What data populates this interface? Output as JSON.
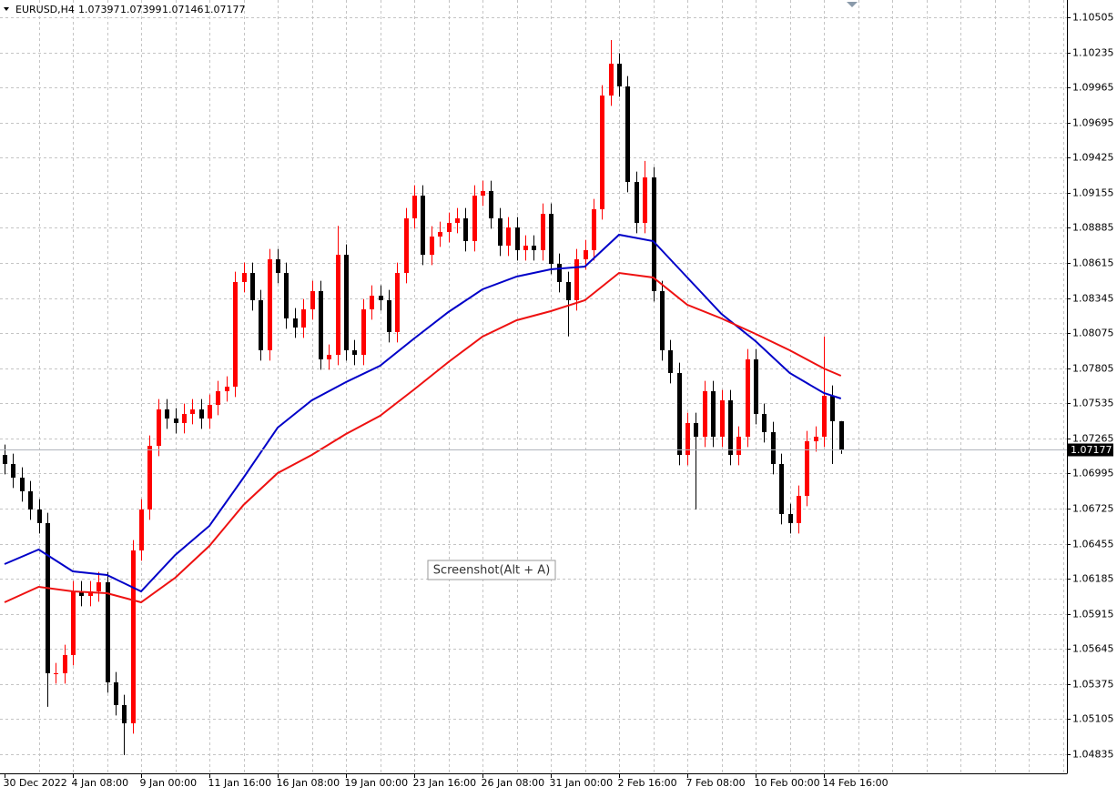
{
  "chart_data": {
    "type": "candlestick",
    "title": "EURUSD,H4",
    "annotation": "Screenshot(Alt + A)",
    "categories": [
      "30 Dec 2022",
      null,
      null,
      null,
      null,
      null,
      null,
      null,
      "4 Jan 08:00",
      null,
      null,
      null,
      null,
      null,
      null,
      null,
      "9 Jan 00:00",
      null,
      null,
      null,
      null,
      null,
      null,
      null,
      "11 Jan 16:00",
      null,
      null,
      null,
      null,
      null,
      null,
      null,
      "16 Jan 08:00",
      null,
      null,
      null,
      null,
      null,
      null,
      null,
      "19 Jan 00:00",
      null,
      null,
      null,
      null,
      null,
      null,
      null,
      "23 Jan 16:00",
      null,
      null,
      null,
      null,
      null,
      null,
      null,
      "26 Jan 08:00",
      null,
      null,
      null,
      null,
      null,
      null,
      null,
      "31 Jan 00:00",
      null,
      null,
      null,
      null,
      null,
      null,
      null,
      "2 Feb 16:00",
      null,
      null,
      null,
      null,
      null,
      null,
      null,
      "7 Feb 08:00",
      null,
      null,
      null,
      null,
      null,
      null,
      null,
      "10 Feb 00:00",
      null,
      null,
      null,
      null,
      null,
      null,
      null,
      "14 Feb 16:00",
      null,
      null
    ],
    "open": [
      1.07138,
      1.07068,
      1.06963,
      1.06858,
      1.06718,
      1.06613,
      1.05458,
      1.05458,
      1.05598,
      1.06088,
      1.06053,
      1.06088,
      1.06158,
      1.05388,
      1.05213,
      1.05073,
      1.06403,
      1.06718,
      1.07208,
      1.07488,
      1.07418,
      1.07383,
      1.07453,
      1.07488,
      1.07418,
      1.07523,
      1.07628,
      1.07663,
      1.08468,
      1.08538,
      1.08328,
      1.07943,
      1.08643,
      1.08538,
      1.08188,
      1.08118,
      1.08258,
      1.08398,
      1.07873,
      1.07908,
      1.08678,
      1.07943,
      1.07908,
      1.08258,
      1.08363,
      1.08328,
      1.08083,
      1.08538,
      1.08958,
      1.09133,
      1.08678,
      1.08818,
      1.08853,
      1.08923,
      1.08958,
      1.08783,
      1.09133,
      1.09168,
      1.08958,
      1.08748,
      1.08888,
      1.08713,
      1.08748,
      1.08713,
      1.08993,
      1.08608,
      1.08468,
      1.08328,
      1.08643,
      1.08713,
      1.09028,
      1.09903,
      1.10148,
      1.09973,
      1.09238,
      1.08923,
      1.09273,
      1.08398,
      1.07943,
      1.07768,
      1.07138,
      1.07383,
      1.07278,
      1.07628,
      1.07278,
      1.07558,
      1.07138,
      1.07278,
      1.07873,
      1.07453,
      1.07313,
      1.07068,
      1.06683,
      1.06613,
      1.06823,
      1.07243,
      1.07278,
      1.07593,
      1.07397
    ],
    "high": [
      1.07218,
      1.07148,
      1.07043,
      1.06938,
      1.06798,
      1.06693,
      1.05538,
      1.05678,
      1.06168,
      1.06168,
      1.06168,
      1.06238,
      1.06238,
      1.05468,
      1.05293,
      1.06483,
      1.06798,
      1.07288,
      1.07568,
      1.07568,
      1.07498,
      1.07533,
      1.07568,
      1.07568,
      1.07603,
      1.07708,
      1.07743,
      1.08548,
      1.08618,
      1.08618,
      1.08408,
      1.08723,
      1.08723,
      1.08618,
      1.08268,
      1.08338,
      1.08478,
      1.08478,
      1.07988,
      1.089,
      1.08758,
      1.08023,
      1.08338,
      1.08443,
      1.08443,
      1.08408,
      1.08618,
      1.09038,
      1.09213,
      1.09213,
      1.08898,
      1.08933,
      1.09003,
      1.09038,
      1.09038,
      1.09213,
      1.09248,
      1.09248,
      1.09038,
      1.08968,
      1.08968,
      1.08828,
      1.08828,
      1.09073,
      1.09073,
      1.08688,
      1.08548,
      1.08723,
      1.08793,
      1.09108,
      1.09983,
      1.1033,
      1.10228,
      1.10053,
      1.09318,
      1.094,
      1.09353,
      1.08478,
      1.08023,
      1.07848,
      1.07463,
      1.07463,
      1.07708,
      1.07708,
      1.07638,
      1.07638,
      1.07358,
      1.07953,
      1.07953,
      1.07533,
      1.07393,
      1.07148,
      1.06763,
      1.06903,
      1.07323,
      1.07358,
      1.0805,
      1.07673,
      1.07399
    ],
    "low": [
      1.06988,
      1.06883,
      1.06778,
      1.06638,
      1.06533,
      1.052,
      1.05378,
      1.05378,
      1.05518,
      1.05973,
      1.05973,
      1.06008,
      1.05308,
      1.05133,
      1.04828,
      1.04993,
      1.06323,
      1.06638,
      1.07128,
      1.07338,
      1.07303,
      1.07303,
      1.07373,
      1.07338,
      1.07338,
      1.07443,
      1.07548,
      1.07583,
      1.08388,
      1.08248,
      1.07863,
      1.07863,
      1.08458,
      1.08108,
      1.08038,
      1.08038,
      1.08178,
      1.07793,
      1.07793,
      1.07828,
      1.07863,
      1.07828,
      1.07828,
      1.08178,
      1.08248,
      1.08003,
      1.08003,
      1.08458,
      1.08878,
      1.08598,
      1.08598,
      1.08738,
      1.08773,
      1.08843,
      1.08703,
      1.08703,
      1.09053,
      1.08878,
      1.08668,
      1.08668,
      1.08633,
      1.08633,
      1.08633,
      1.08633,
      1.08528,
      1.08388,
      1.0805,
      1.08248,
      1.08563,
      1.08633,
      1.08948,
      1.09823,
      1.09893,
      1.09158,
      1.08843,
      1.08843,
      1.08318,
      1.07863,
      1.07688,
      1.07058,
      1.07058,
      1.06718,
      1.07198,
      1.07198,
      1.07198,
      1.07058,
      1.07058,
      1.07198,
      1.07373,
      1.07233,
      1.06988,
      1.06603,
      1.06533,
      1.06533,
      1.06743,
      1.07163,
      1.07198,
      1.07068,
      1.07146
    ],
    "close": [
      1.07068,
      1.06963,
      1.06858,
      1.06718,
      1.06613,
      1.05458,
      1.05458,
      1.05598,
      1.06088,
      1.06053,
      1.06088,
      1.06158,
      1.05388,
      1.05213,
      1.05073,
      1.06403,
      1.06718,
      1.07208,
      1.07488,
      1.07418,
      1.07383,
      1.07453,
      1.07488,
      1.07418,
      1.07523,
      1.07628,
      1.07663,
      1.08468,
      1.08538,
      1.08328,
      1.07943,
      1.08643,
      1.08538,
      1.08188,
      1.08118,
      1.08258,
      1.08398,
      1.07873,
      1.07908,
      1.08678,
      1.07943,
      1.07908,
      1.08258,
      1.08363,
      1.08328,
      1.08083,
      1.08538,
      1.08958,
      1.09133,
      1.08678,
      1.08818,
      1.08853,
      1.08923,
      1.08958,
      1.08783,
      1.09133,
      1.09168,
      1.08958,
      1.08748,
      1.08888,
      1.08713,
      1.08748,
      1.08713,
      1.08993,
      1.08608,
      1.08468,
      1.08328,
      1.08643,
      1.08713,
      1.09028,
      1.09903,
      1.10148,
      1.09973,
      1.09238,
      1.08923,
      1.09273,
      1.08398,
      1.07943,
      1.07768,
      1.07138,
      1.07383,
      1.07278,
      1.07628,
      1.07278,
      1.07558,
      1.07138,
      1.07278,
      1.07873,
      1.07453,
      1.07313,
      1.07068,
      1.06683,
      1.06613,
      1.06823,
      1.07243,
      1.07278,
      1.07593,
      1.07397,
      1.07177
    ],
    "up_color": "#ff0000",
    "down_color": "#000000",
    "moving_averages": [
      {
        "color": "#0000c8",
        "x": [
          0,
          4,
          8,
          12,
          16,
          20,
          24,
          28,
          32,
          36,
          40,
          44,
          48,
          52,
          56,
          60,
          64,
          68,
          72,
          76,
          80,
          84,
          88,
          92,
          96,
          98
        ],
        "values": [
          1.06298,
          1.0641,
          1.06242,
          1.06214,
          1.06088,
          1.06368,
          1.06592,
          1.06963,
          1.07348,
          1.07558,
          1.07698,
          1.07824,
          1.08034,
          1.08237,
          1.08412,
          1.0851,
          1.08566,
          1.08587,
          1.08832,
          1.08783,
          1.08503,
          1.08223,
          1.08013,
          1.07768,
          1.07614,
          1.07572
        ]
      },
      {
        "color": "#ee1111",
        "x": [
          0,
          4,
          8,
          12,
          16,
          20,
          24,
          28,
          32,
          36,
          40,
          44,
          48,
          52,
          56,
          60,
          64,
          68,
          72,
          76,
          80,
          84,
          88,
          92,
          96,
          98
        ],
        "values": [
          1.06004,
          1.06123,
          1.06088,
          1.06074,
          1.06004,
          1.06193,
          1.06438,
          1.06753,
          1.06998,
          1.07138,
          1.07299,
          1.07439,
          1.07642,
          1.07852,
          1.08048,
          1.08174,
          1.08244,
          1.08328,
          1.08538,
          1.08503,
          1.08293,
          1.08188,
          1.08069,
          1.07943,
          1.07803,
          1.07747
        ]
      }
    ],
    "ylim": [
      1.04688,
      1.10638
    ],
    "yticks": [
      1.10505,
      1.10235,
      1.09965,
      1.09695,
      1.09425,
      1.09155,
      1.08885,
      1.08615,
      1.08345,
      1.08075,
      1.07805,
      1.07535,
      1.07265,
      1.06995,
      1.06725,
      1.06455,
      1.06185,
      1.05915,
      1.05645,
      1.05375,
      1.05105,
      1.04835
    ],
    "grid": true
  }
}
